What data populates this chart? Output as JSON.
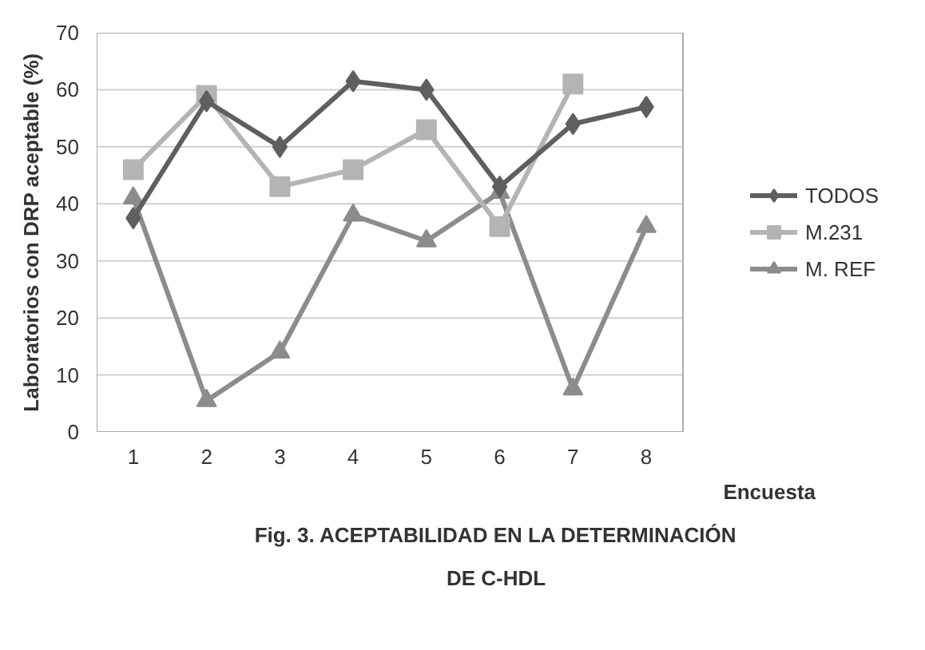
{
  "chart_data": {
    "type": "line",
    "title": "Fig. 3. ACEPTABILIDAD EN LA DETERMINACIÓN DE C-HDL",
    "xlabel": "Encuesta",
    "ylabel": "Laboratorios con DRP aceptable (%)",
    "categories": [
      "1",
      "2",
      "3",
      "4",
      "5",
      "6",
      "7",
      "8"
    ],
    "series": [
      {
        "name": "TODOS",
        "color": "#5f5f5f",
        "marker": "diamond",
        "values": [
          37.5,
          58,
          50,
          61.5,
          60,
          43,
          54,
          57
        ]
      },
      {
        "name": "M.231",
        "color": "#b4b4b4",
        "marker": "square",
        "values": [
          46,
          59,
          43,
          46,
          53,
          36,
          61,
          null
        ]
      },
      {
        "name": "M. REF",
        "color": "#8c8c8c",
        "marker": "triangle",
        "values": [
          41,
          5.5,
          14,
          38,
          33.5,
          42,
          7.5,
          36
        ]
      }
    ],
    "ylim": [
      0,
      70
    ],
    "yticks": [
      0,
      10,
      20,
      30,
      40,
      50,
      60,
      70
    ],
    "grid": "y",
    "legend": "right"
  }
}
